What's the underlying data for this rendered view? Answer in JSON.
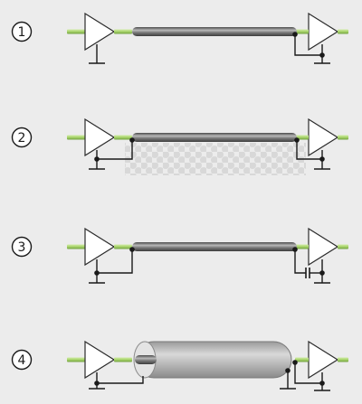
{
  "background": "#ececec",
  "colors": {
    "signal_line": "#a7d46a",
    "signal_line_dark": "#6f9e3e",
    "cable_body": "#6b6b6b",
    "cable_highlight": "#b9b9b9",
    "shield_body": "#c9c9c9",
    "ground_wire": "#1a1a1a",
    "amp_fill": "#ffffff",
    "amp_stroke": "#2b2b2b"
  },
  "diagrams": [
    {
      "label": "1",
      "variant": "shield-grounded-one-end"
    },
    {
      "label": "2",
      "variant": "shield-grounded-both-ends-ground-loop"
    },
    {
      "label": "3",
      "variant": "shield-grounded-via-capacitor"
    },
    {
      "label": "4",
      "variant": "double-shield"
    }
  ]
}
